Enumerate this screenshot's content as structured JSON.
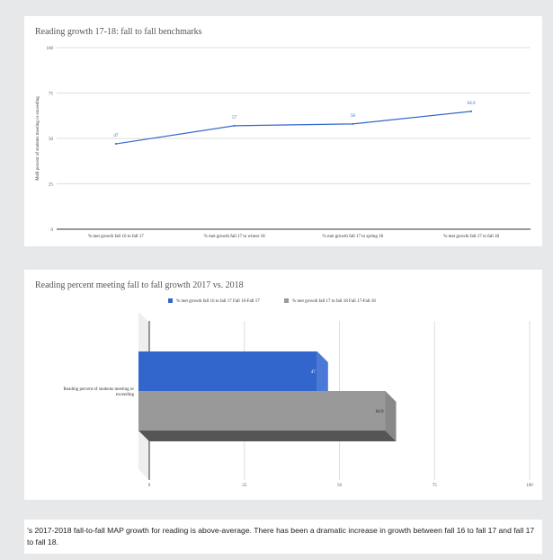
{
  "colors": {
    "line": "#3366cc",
    "bar_2017": "#3366cc",
    "bar_2018": "#999999",
    "grid": "#dddddd",
    "axis_text": "#555555"
  },
  "charts": {
    "line": {
      "title": "Reading growth 17-18: fall to fall benchmarks"
    },
    "bar": {
      "title": "Reading percent meeting fall to fall growth 2017 vs. 2018"
    }
  },
  "chart_data": [
    {
      "type": "line",
      "title": "Reading growth 17-18: fall to fall benchmarks",
      "xlabel": "",
      "ylabel": "MoR percent of students meeting or exceeding",
      "ylim": [
        0,
        100
      ],
      "yticks": [
        "0",
        "25",
        "50",
        "75",
        "100"
      ],
      "categories": [
        "% met growth fall 16 to fall 17",
        "% met growth fall 17 to winter 18",
        "% met growth fall 17 to spring 18",
        "% met growth fall 17 to fall 18"
      ],
      "series": [
        {
          "values": [
            47,
            57,
            58,
            64.9
          ],
          "labels": [
            "47",
            "57",
            "58",
            "64.9"
          ]
        }
      ],
      "grid": true,
      "legend": "none"
    },
    {
      "type": "bar",
      "orientation": "horizontal",
      "style": "3d",
      "title": "Reading percent meeting fall to fall growth 2017 vs. 2018",
      "xlim": [
        0,
        100
      ],
      "xticks": [
        "0",
        "25",
        "50",
        "75",
        "100"
      ],
      "categories": [
        "Reading percent of students meeting or exceeding"
      ],
      "series": [
        {
          "name": "% met growth fall 16 to fall 17 Fall 16-Fall 17",
          "values": [
            47
          ],
          "labels": [
            "47"
          ]
        },
        {
          "name": "% met growth fall 17 to fall 18 Fall 17-Fall 18",
          "values": [
            64.9
          ],
          "labels": [
            "64.9"
          ]
        }
      ],
      "grid": true,
      "legend": "top"
    }
  ],
  "summary": {
    "text": "’s 2017-2018 fall-to-fall MAP growth for reading is above-average. There has been a dramatic increase in growth between fall 16 to fall 17 and fall 17 to fall 18."
  }
}
